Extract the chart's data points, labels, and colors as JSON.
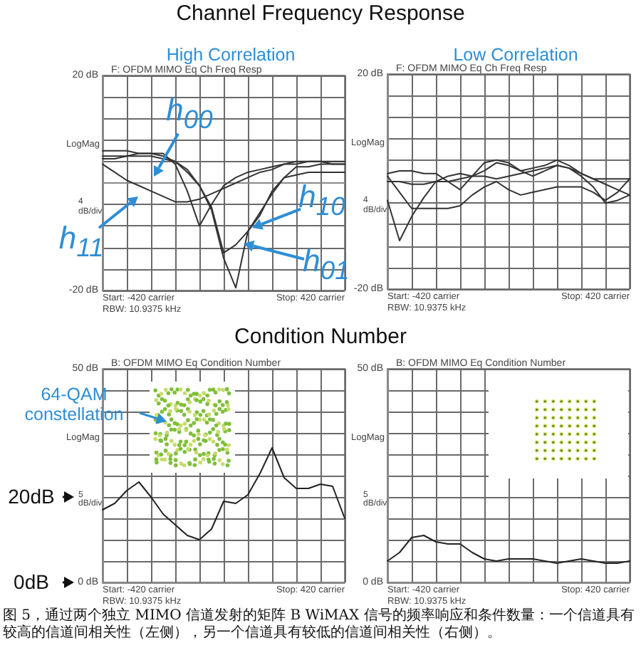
{
  "chart_data": [
    {
      "type": "line",
      "title": "High Correlation",
      "subtitle": "F: OFDM MIMO Eq Ch Freq Resp",
      "ylabel": "LogMag",
      "annotations": [
        "Channel Frequency Response",
        "Start: -420 carrier",
        "Stop: 420 carrier",
        "RBW: 10.9375 kHz",
        "4 dB/div",
        "h$_{00}$",
        "h$_{11}$",
        "h$_{10}$",
        "h$_{01}$"
      ],
      "categories": [
        null,
        null,
        null,
        null,
        null,
        null,
        null,
        null,
        null,
        null,
        null,
        null,
        null,
        null,
        null,
        null,
        null,
        null,
        null,
        null,
        null
      ],
      "series": [
        {
          "color": "#333333",
          "values": [
            5,
            5,
            5,
            5.5,
            5.5,
            5.5,
            3.5,
            -1.5,
            -8,
            -4,
            -0.5,
            1,
            2,
            2.5,
            3,
            3.5,
            4,
            4,
            4,
            3.5,
            3.5
          ]
        },
        {
          "color": "#333333",
          "values": [
            3.5,
            2,
            0.5,
            -0.5,
            -1.5,
            -2.5,
            -3.5,
            -3.5,
            -3,
            -2,
            -1,
            0,
            1,
            2,
            2.5,
            3.5,
            3.5,
            4,
            4,
            4,
            4
          ]
        },
        {
          "color": "#333333",
          "values": [
            6,
            6,
            6,
            5.5,
            5.5,
            5,
            4,
            2.5,
            -0.5,
            -4.5,
            -13,
            -11.5,
            -9,
            -6,
            -1.5,
            1,
            3,
            3,
            3.5,
            3.5,
            3.5
          ]
        },
        {
          "color": "#333333",
          "values": [
            4.5,
            4.5,
            5,
            5,
            5,
            4.5,
            4,
            2,
            -0.5,
            -5,
            -14,
            -19.5,
            -9,
            -5.5,
            -2,
            1,
            1.5,
            2,
            2,
            2,
            2
          ]
        }
      ],
      "ylim": [
        -20,
        20
      ],
      "yticks": [
        {
          "value": -20,
          "label": "-20 dB"
        },
        {
          "value": -16,
          "label": null
        },
        {
          "value": -12,
          "label": null
        },
        {
          "value": -8,
          "label": null
        },
        {
          "value": -4,
          "label": null
        },
        {
          "value": 0,
          "label": null
        },
        {
          "value": 4,
          "label": null
        },
        {
          "value": 8,
          "label": null
        },
        {
          "value": 12,
          "label": null
        },
        {
          "value": 16,
          "label": null
        },
        {
          "value": 20,
          "label": "20 dB"
        }
      ],
      "grid": true,
      "tick_labels": "y"
    },
    {
      "type": "line",
      "title": "Low Correlation",
      "subtitle": "F: OFDM MIMO Eq Ch Freq Resp",
      "ylabel": "LogMag",
      "annotations": [
        "Start: -420 carrier",
        "Stop: 420 carrier",
        "RBW: 10.9375 kHz",
        "4 dB/div"
      ],
      "categories": [
        null,
        null,
        null,
        null,
        null,
        null,
        null,
        null,
        null,
        null,
        null,
        null,
        null,
        null,
        null,
        null,
        null,
        null,
        null,
        null,
        null
      ],
      "series": [
        {
          "color": "#333333",
          "values": [
            -3.5,
            -11,
            -6.5,
            -3,
            0,
            0,
            0.5,
            1,
            2,
            3.5,
            3,
            2,
            2.5,
            3,
            4,
            3,
            1.5,
            0.5,
            -0.5,
            -1.5,
            -2.5
          ]
        },
        {
          "color": "#333333",
          "values": [
            1.5,
            2,
            2,
            1.5,
            1.5,
            0,
            -1.5,
            1,
            3.5,
            4,
            3.5,
            2,
            1,
            2,
            3,
            2.5,
            1,
            -1,
            -4,
            -3.5,
            -2.5
          ]
        },
        {
          "color": "#333333",
          "values": [
            1,
            -2,
            -5,
            -5,
            -5,
            -5,
            -4.5,
            -2.5,
            -1,
            0,
            -1.5,
            -2.5,
            -2,
            -1.5,
            -1,
            -1,
            -1,
            -2,
            -3.5,
            -2,
            0.5
          ]
        },
        {
          "color": "#333333",
          "values": [
            0,
            0,
            -0.5,
            -0.5,
            0,
            1,
            1.5,
            1,
            1,
            0.5,
            1,
            1.5,
            2,
            2.5,
            3,
            2.5,
            1.5,
            0.5,
            0.5,
            0.5,
            0.5
          ]
        }
      ],
      "ylim": [
        -20,
        20
      ],
      "yticks": [
        {
          "value": -20,
          "label": "-20 dB"
        },
        {
          "value": -16,
          "label": null
        },
        {
          "value": -12,
          "label": null
        },
        {
          "value": -8,
          "label": null
        },
        {
          "value": -4,
          "label": null
        },
        {
          "value": 0,
          "label": null
        },
        {
          "value": 4,
          "label": null
        },
        {
          "value": 8,
          "label": null
        },
        {
          "value": 12,
          "label": null
        },
        {
          "value": 16,
          "label": null
        },
        {
          "value": 20,
          "label": "20 dB"
        }
      ],
      "grid": true,
      "tick_labels": "y"
    },
    {
      "type": "line",
      "subtitle": "B: OFDM MIMO Eq Condition Number",
      "ylabel": "LogMag",
      "annotations": [
        "Condition Number",
        "Start: -420 carrier",
        "Stop: 420 carrier",
        "RBW: 10.9375 kHz",
        "5 dB/div",
        "64-QAM constellation",
        "20dB",
        "0dB"
      ],
      "categories": [
        null,
        null,
        null,
        null,
        null,
        null,
        null,
        null,
        null,
        null,
        null,
        null,
        null,
        null,
        null,
        null,
        null,
        null,
        null,
        null,
        null
      ],
      "series": [
        {
          "color": "#222222",
          "values": [
            17,
            18.5,
            21.5,
            23.5,
            20,
            16,
            13.5,
            11,
            10,
            12.5,
            19,
            18.5,
            20.5,
            25.5,
            31.5,
            24.5,
            22,
            22,
            23,
            22.5,
            15
          ]
        }
      ],
      "ylim": [
        0,
        50
      ],
      "yticks": [
        {
          "value": 0,
          "label": "0 dB"
        },
        {
          "value": 5,
          "label": null
        },
        {
          "value": 10,
          "label": null
        },
        {
          "value": 15,
          "label": null
        },
        {
          "value": 20,
          "label": null
        },
        {
          "value": 25,
          "label": null
        },
        {
          "value": 30,
          "label": null
        },
        {
          "value": 35,
          "label": null
        },
        {
          "value": 40,
          "label": null
        },
        {
          "value": 45,
          "label": null
        },
        {
          "value": 50,
          "label": "50 dB"
        }
      ],
      "grid": true,
      "tick_labels": "y"
    },
    {
      "type": "line",
      "subtitle": "B: OFDM MIMO Eq Condition Number",
      "ylabel": "LogMag",
      "annotations": [
        "Start: -420 carrier",
        "Stop: 420 carrier",
        "RBW: 10.9375 kHz",
        "5 dB/div",
        "图 5，通过两个独立 MIMO 信道发射的矩阵 B WiMAX 信号的频率响应和条件数量：一个信道具有较高的信道间相关性（左侧），另一个信道具有较低的信道间相关性（右侧）。"
      ],
      "categories": [
        null,
        null,
        null,
        null,
        null,
        null,
        null,
        null,
        null,
        null,
        null,
        null,
        null,
        null,
        null,
        null,
        null,
        null,
        null,
        null,
        null
      ],
      "series": [
        {
          "color": "#222222",
          "values": [
            5,
            7,
            10.5,
            11,
            9.5,
            9,
            9,
            7,
            5.5,
            5,
            5.5,
            5.5,
            5.5,
            5,
            4.5,
            5,
            5.5,
            5,
            4.5,
            4.5,
            5
          ]
        }
      ],
      "ylim": [
        0,
        50
      ],
      "yticks": [
        {
          "value": 0,
          "label": "0 dB"
        },
        {
          "value": 5,
          "label": null
        },
        {
          "value": 10,
          "label": null
        },
        {
          "value": 15,
          "label": null
        },
        {
          "value": 20,
          "label": null
        },
        {
          "value": 25,
          "label": null
        },
        {
          "value": 30,
          "label": null
        },
        {
          "value": 35,
          "label": null
        },
        {
          "value": 40,
          "label": null
        },
        {
          "value": 45,
          "label": null
        },
        {
          "value": 50,
          "label": "50 dB"
        }
      ],
      "grid": true,
      "tick_labels": "y"
    }
  ]
}
